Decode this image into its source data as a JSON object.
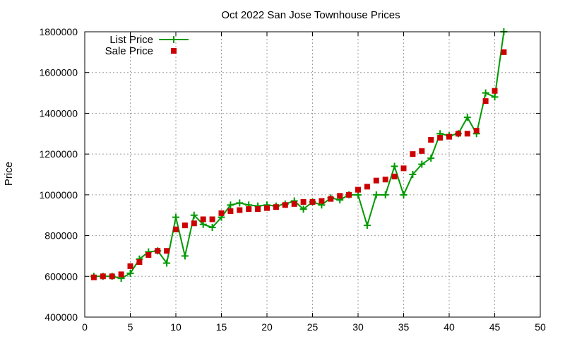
{
  "chart_data": {
    "type": "line",
    "title": "Oct 2022 San Jose Townhouse Prices",
    "xlabel": "",
    "ylabel": "Price",
    "xlim": [
      0,
      50
    ],
    "ylim": [
      400000,
      1800000
    ],
    "xticks": [
      0,
      5,
      10,
      15,
      20,
      25,
      30,
      35,
      40,
      45,
      50
    ],
    "yticks": [
      400000,
      600000,
      800000,
      1000000,
      1200000,
      1400000,
      1600000,
      1800000
    ],
    "grid": true,
    "legend_position": "top-left",
    "series": [
      {
        "name": "List Price",
        "style": "line-plus",
        "color": "#009900",
        "x": [
          1,
          2,
          3,
          4,
          5,
          6,
          7,
          8,
          9,
          10,
          11,
          12,
          13,
          14,
          15,
          16,
          17,
          18,
          19,
          20,
          21,
          22,
          23,
          24,
          25,
          26,
          27,
          28,
          29,
          30,
          31,
          32,
          33,
          34,
          35,
          36,
          37,
          38,
          39,
          40,
          41,
          42,
          43,
          44,
          45,
          46
        ],
        "y": [
          600000,
          600000,
          600000,
          590000,
          615000,
          685000,
          720000,
          725000,
          665000,
          890000,
          700000,
          900000,
          855000,
          840000,
          890000,
          950000,
          960000,
          950000,
          945000,
          950000,
          945000,
          955000,
          970000,
          930000,
          965000,
          950000,
          985000,
          975000,
          1000000,
          1000000,
          850000,
          1000000,
          1000000,
          1140000,
          1000000,
          1100000,
          1150000,
          1180000,
          1300000,
          1290000,
          1300000,
          1380000,
          1300000,
          1500000,
          1480000,
          1800000
        ]
      },
      {
        "name": "Sale Price",
        "style": "square-markers",
        "color": "#cc0000",
        "x": [
          1,
          2,
          3,
          4,
          5,
          6,
          7,
          8,
          9,
          10,
          11,
          12,
          13,
          14,
          15,
          16,
          17,
          18,
          19,
          20,
          21,
          22,
          23,
          24,
          25,
          26,
          27,
          28,
          29,
          30,
          31,
          32,
          33,
          34,
          35,
          36,
          37,
          38,
          39,
          40,
          41,
          42,
          43,
          44,
          45,
          46
        ],
        "y": [
          595000,
          600000,
          600000,
          610000,
          650000,
          670000,
          705000,
          725000,
          725000,
          830000,
          850000,
          860000,
          880000,
          880000,
          910000,
          920000,
          925000,
          930000,
          930000,
          935000,
          940000,
          950000,
          955000,
          965000,
          965000,
          970000,
          980000,
          995000,
          1000000,
          1025000,
          1040000,
          1070000,
          1075000,
          1090000,
          1130000,
          1200000,
          1215000,
          1270000,
          1280000,
          1285000,
          1300000,
          1300000,
          1315000,
          1460000,
          1510000,
          1700000
        ]
      }
    ]
  }
}
